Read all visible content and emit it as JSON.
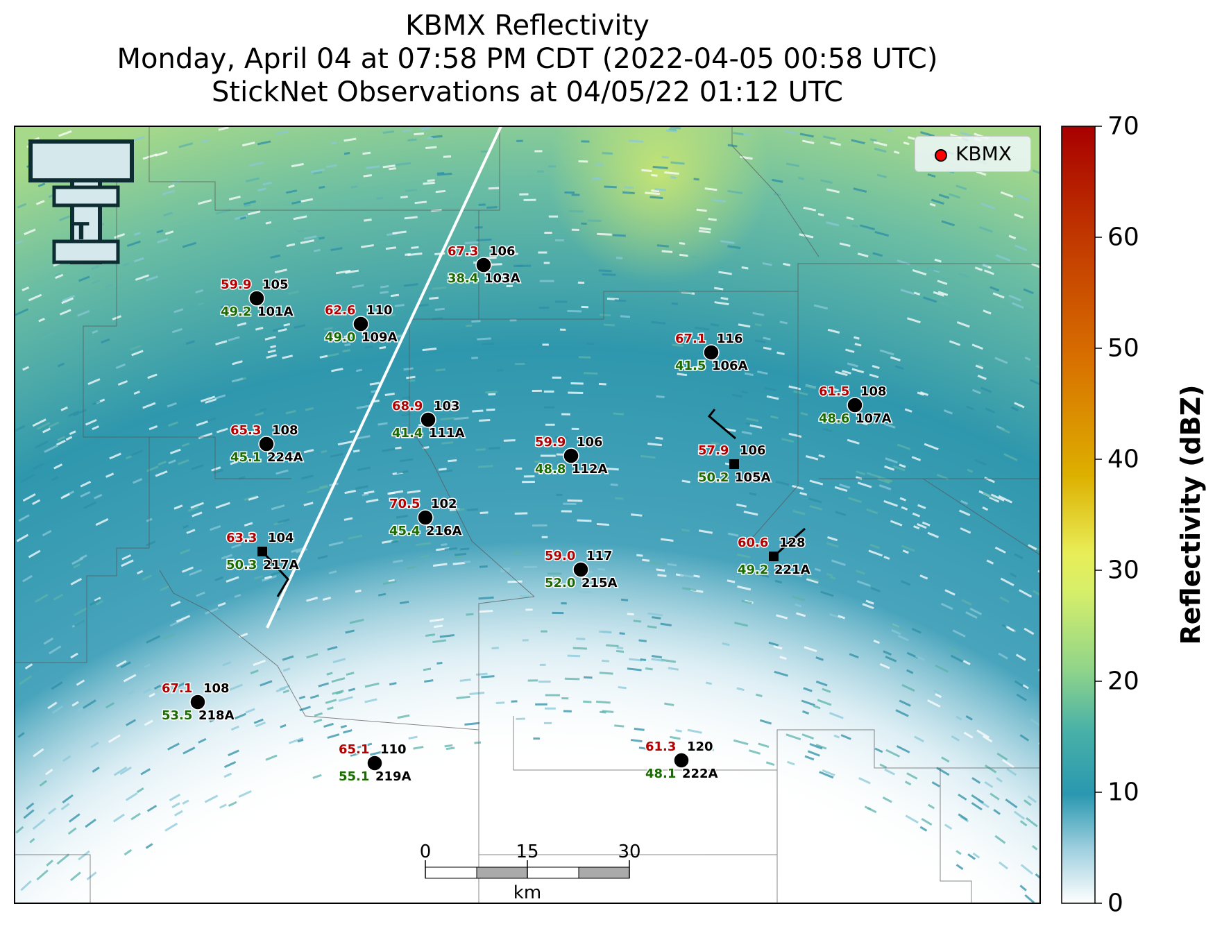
{
  "header": {
    "title_line1": "KBMX Reflectivity",
    "title_line2": "Monday, April 04 at 07:58 PM CDT (2022-04-05 00:58 UTC)",
    "title_line3": "StickNet Observations at 04/05/22 01:12 UTC"
  },
  "legend": {
    "label": "KBMX",
    "marker_color": "#ff0000"
  },
  "colorbar": {
    "label": "Reflectivity (dBZ)",
    "ticks": [
      "0",
      "10",
      "20",
      "30",
      "40",
      "50",
      "60",
      "70"
    ],
    "min": 0,
    "max": 70
  },
  "scalebar": {
    "ticks": [
      "0",
      "15",
      "30"
    ],
    "unit": "km"
  },
  "logo": {
    "letter": "T"
  },
  "colors": {
    "temperature": "#b30000",
    "dewpoint": "#1a6b00",
    "station_id": "#000000"
  },
  "stations": [
    {
      "id": "101A",
      "temp": "59.9",
      "dew": "49.2",
      "pressure": "105",
      "marker": "circle"
    },
    {
      "id": "109A",
      "temp": "62.6",
      "dew": "49.0",
      "pressure": "110",
      "marker": "circle"
    },
    {
      "id": "103A",
      "temp": "67.3",
      "dew": "38.4",
      "pressure": "106",
      "marker": "circle"
    },
    {
      "id": "106A",
      "temp": "67.1",
      "dew": "41.5",
      "pressure": "116",
      "marker": "circle"
    },
    {
      "id": "107A",
      "temp": "61.5",
      "dew": "48.6",
      "pressure": "108",
      "marker": "circle"
    },
    {
      "id": "111A",
      "temp": "68.9",
      "dew": "41.4",
      "pressure": "103",
      "marker": "circle"
    },
    {
      "id": "224A",
      "temp": "65.3",
      "dew": "45.1",
      "pressure": "108",
      "marker": "circle"
    },
    {
      "id": "112A",
      "temp": "59.9",
      "dew": "48.8",
      "pressure": "106",
      "marker": "circle"
    },
    {
      "id": "105A",
      "temp": "57.9",
      "dew": "50.2",
      "pressure": "106",
      "marker": "square"
    },
    {
      "id": "216A",
      "temp": "70.5",
      "dew": "45.4",
      "pressure": "102",
      "marker": "circle"
    },
    {
      "id": "217A",
      "temp": "63.3",
      "dew": "50.3",
      "pressure": "104",
      "marker": "square"
    },
    {
      "id": "215A",
      "temp": "59.0",
      "dew": "52.0",
      "pressure": "117",
      "marker": "circle"
    },
    {
      "id": "221A",
      "temp": "60.6",
      "dew": "49.2",
      "pressure": "128",
      "marker": "square"
    },
    {
      "id": "218A",
      "temp": "67.1",
      "dew": "53.5",
      "pressure": "108",
      "marker": "circle"
    },
    {
      "id": "219A",
      "temp": "65.1",
      "dew": "55.1",
      "pressure": "110",
      "marker": "circle"
    },
    {
      "id": "222A",
      "temp": "61.3",
      "dew": "48.1",
      "pressure": "120",
      "marker": "circle"
    }
  ]
}
